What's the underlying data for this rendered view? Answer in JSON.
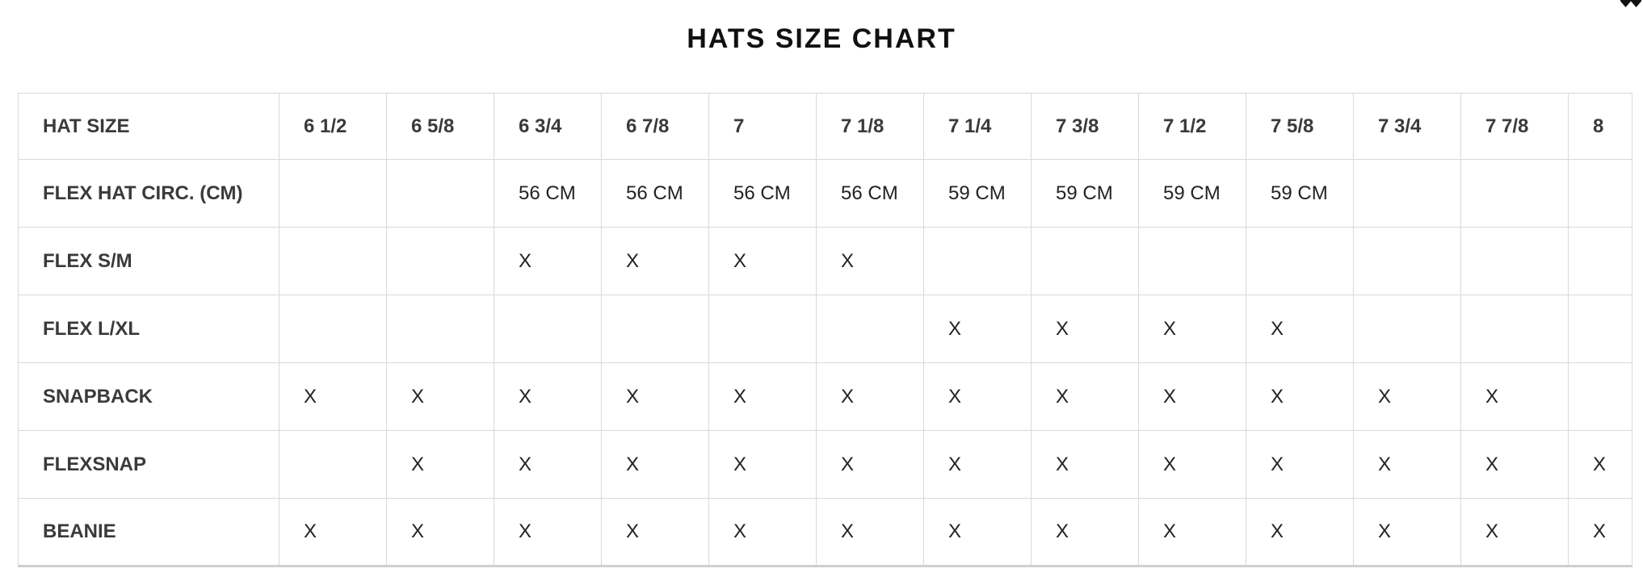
{
  "colors": {
    "title_text": "#111111",
    "label_text": "#3a3a3a",
    "value_text": "#222222",
    "border": "#d9d9d9",
    "table_bottom_border": "#cfcfcf",
    "corner_icon": "#111111"
  },
  "icons": {
    "corner_glyph": "cropped-double-point-down-glyph"
  },
  "chart_data": {
    "type": "table",
    "title": "HATS SIZE CHART",
    "columns": [
      "HAT SIZE",
      "6 1/2",
      "6 5/8",
      "6 3/4",
      "6 7/8",
      "7",
      "7 1/8",
      "7 1/4",
      "7 3/8",
      "7 1/2",
      "7 5/8",
      "7 3/4",
      "7 7/8",
      "8"
    ],
    "rows": [
      {
        "label": "FLEX HAT CIRC. (CM)",
        "values": [
          "",
          "",
          "56 CM",
          "56 CM",
          "56 CM",
          "56 CM",
          "59 CM",
          "59 CM",
          "59 CM",
          "59 CM",
          "",
          "",
          ""
        ]
      },
      {
        "label": "FLEX S/M",
        "values": [
          "",
          "",
          "X",
          "X",
          "X",
          "X",
          "",
          "",
          "",
          "",
          "",
          "",
          ""
        ]
      },
      {
        "label": "FLEX L/XL",
        "values": [
          "",
          "",
          "",
          "",
          "",
          "",
          "X",
          "X",
          "X",
          "X",
          "",
          "",
          ""
        ]
      },
      {
        "label": "SNAPBACK",
        "values": [
          "X",
          "X",
          "X",
          "X",
          "X",
          "X",
          "X",
          "X",
          "X",
          "X",
          "X",
          "X",
          ""
        ]
      },
      {
        "label": "FLEXSNAP",
        "values": [
          "",
          "X",
          "X",
          "X",
          "X",
          "X",
          "X",
          "X",
          "X",
          "X",
          "X",
          "X",
          "X"
        ]
      },
      {
        "label": "BEANIE",
        "values": [
          "X",
          "X",
          "X",
          "X",
          "X",
          "X",
          "X",
          "X",
          "X",
          "X",
          "X",
          "X",
          "X"
        ]
      }
    ]
  }
}
